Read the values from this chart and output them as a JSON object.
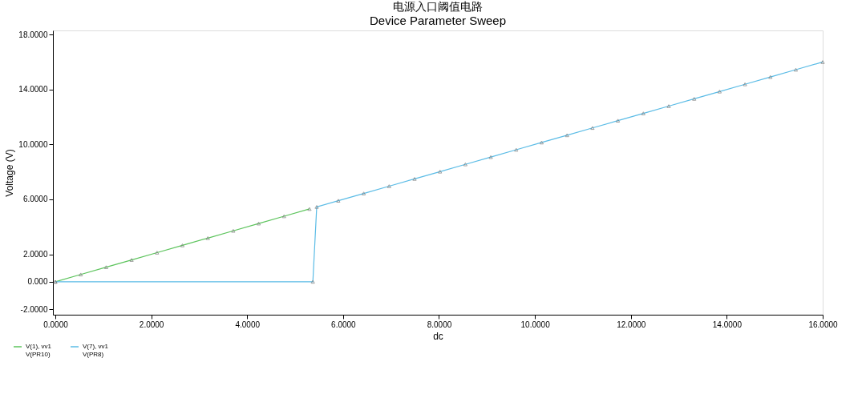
{
  "chart_data": {
    "type": "line",
    "title": "电源入口阈值电路",
    "subtitle": "Device Parameter Sweep",
    "xlabel": "dc",
    "ylabel": "Voltage (V)",
    "xlim": [
      -0.05,
      16.0
    ],
    "xticks": [
      {
        "value": 0,
        "label": "0.0000"
      },
      {
        "value": 2,
        "label": "2.0000"
      },
      {
        "value": 4,
        "label": "4.0000"
      },
      {
        "value": 6,
        "label": "6.0000"
      },
      {
        "value": 8,
        "label": "8.0000"
      },
      {
        "value": 10,
        "label": "10.0000"
      },
      {
        "value": 12,
        "label": "12.0000"
      },
      {
        "value": 14,
        "label": "14.0000"
      },
      {
        "value": 16,
        "label": "16.0000"
      }
    ],
    "ylim": [
      -2.4,
      18.3
    ],
    "yticks": [
      {
        "value": -2,
        "label": "-2.0000"
      },
      {
        "value": 0,
        "label": "0.000"
      },
      {
        "value": 2,
        "label": "2.0000"
      },
      {
        "value": 6,
        "label": "6.0000"
      },
      {
        "value": 10,
        "label": "10.0000"
      },
      {
        "value": 14,
        "label": "14.0000"
      },
      {
        "value": 18,
        "label": "18.0000"
      }
    ],
    "grid": false,
    "legend": "bottom left",
    "marker": "triangle",
    "line_style": "solid",
    "series": [
      {
        "name": "V(1), vv1\nV(PR10)",
        "color": "#5cc45c",
        "x": [
          0,
          0.53,
          1.06,
          1.59,
          2.12,
          2.65,
          3.18,
          3.71,
          4.24,
          4.77,
          5.3
        ],
        "values": [
          0,
          0.53,
          1.06,
          1.59,
          2.12,
          2.65,
          3.18,
          3.71,
          4.24,
          4.77,
          5.3
        ]
      },
      {
        "name": "V(7), vv1\nV(PR8)",
        "color": "#5bbce6",
        "x": [
          0,
          5.37,
          5.45,
          5.9,
          6.43,
          6.96,
          7.49,
          8.02,
          8.55,
          9.08,
          9.61,
          10.14,
          10.67,
          11.2,
          11.73,
          12.26,
          12.79,
          13.32,
          13.85,
          14.38,
          14.91,
          15.44,
          16.0
        ],
        "values": [
          0,
          0,
          5.45,
          5.9,
          6.43,
          6.96,
          7.49,
          8.02,
          8.55,
          9.08,
          9.61,
          10.14,
          10.67,
          11.2,
          11.73,
          12.26,
          12.79,
          13.32,
          13.85,
          14.38,
          14.91,
          15.44,
          16.0
        ]
      }
    ]
  }
}
